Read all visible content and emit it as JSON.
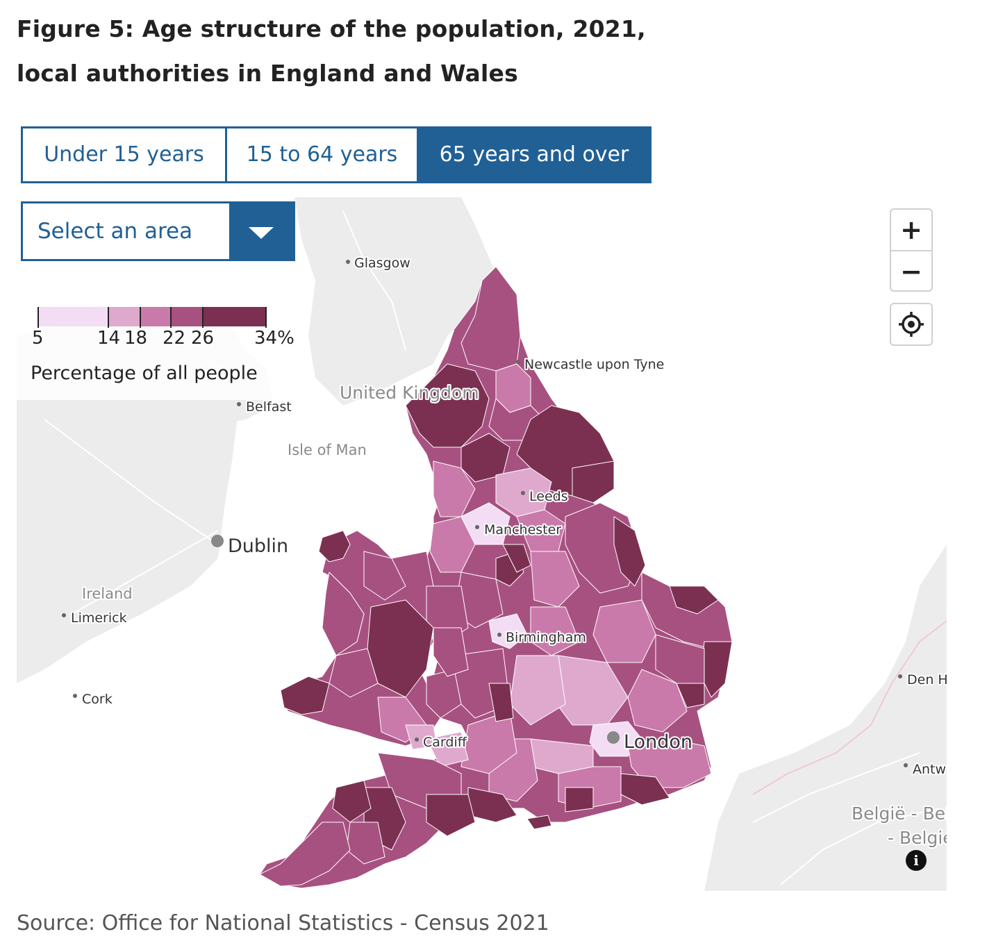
{
  "figure": {
    "title": "Figure 5: Age structure of the population, 2021, local authorities in England and Wales",
    "source": "Source: Office for National Statistics - Census 2021"
  },
  "tabs": [
    {
      "label": "Under 15 years",
      "active": false
    },
    {
      "label": "15 to 64 years",
      "active": false
    },
    {
      "label": "65 years and over",
      "active": true
    }
  ],
  "area_select": {
    "label": "Select an area"
  },
  "legend": {
    "caption": "Percentage of all people",
    "breaks": [
      5,
      14,
      18,
      22,
      26,
      34
    ],
    "labels": [
      "5",
      "14",
      "18",
      "22",
      "26",
      "34%"
    ],
    "colors": [
      "#f3ddf4",
      "#dfa9ce",
      "#c97aaa",
      "#a75181",
      "#7b3052"
    ]
  },
  "map": {
    "places": {
      "glasgow": "Glasgow",
      "newcastle": "Newcastle upon Tyne",
      "belfast": "Belfast",
      "isle_of_man": "Isle of Man",
      "leeds": "Leeds",
      "manchester": "Manchester",
      "dublin": "Dublin",
      "ireland": "Ireland",
      "limerick": "Limerick",
      "birmingham": "Birmingham",
      "cork": "Cork",
      "cardiff": "Cardiff",
      "london": "London",
      "den_haag": "Den H",
      "antwerp": "Antw",
      "belgie_1": "België - Bel",
      "belgie_2": "- Belgie",
      "uk": "United Kingdom"
    },
    "colors": {
      "land": "#ececec",
      "roads": "#ffffff",
      "border": "#f2c9cf",
      "sea": "#ffffff"
    }
  },
  "controls": {
    "zoom_in": "+",
    "zoom_out": "−",
    "info": "i"
  }
}
